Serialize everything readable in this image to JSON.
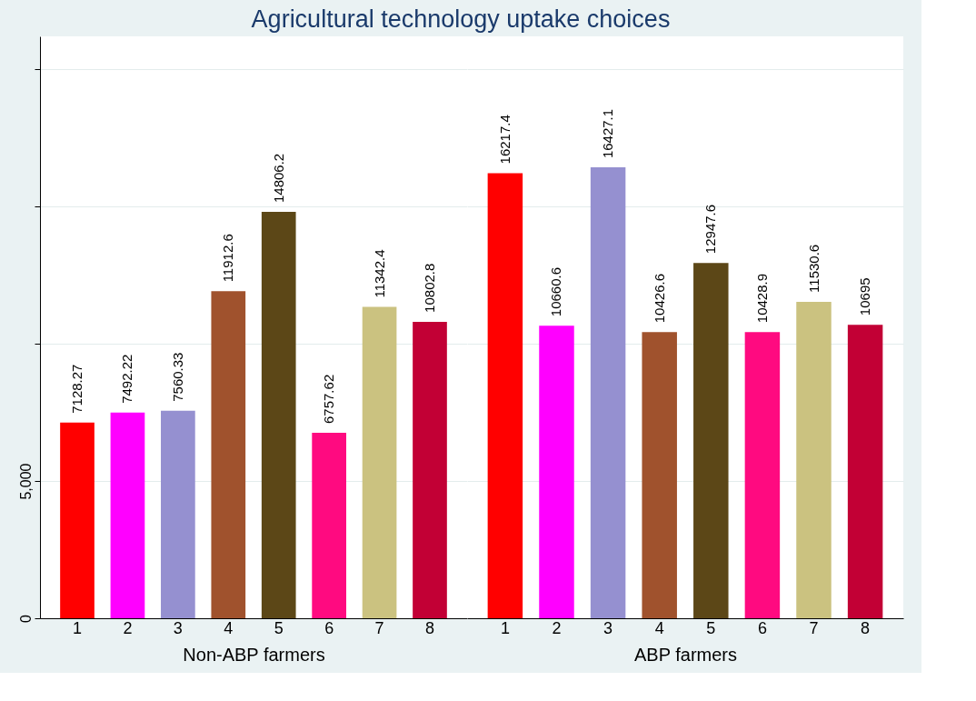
{
  "chart_data": [
    {
      "type": "bar",
      "title": "Agricultural technology uptake choices",
      "xlabel": "Non-ABP farmers",
      "categories": [
        "1",
        "2",
        "3",
        "4",
        "5",
        "6",
        "7",
        "8"
      ],
      "values": [
        7128.27,
        7492.22,
        7560.33,
        11912.6,
        14806.2,
        6757.62,
        11342.4,
        10802.8
      ],
      "colors": [
        "#ff0000",
        "#ff00ff",
        "#9590d0",
        "#a0522d",
        "#5c4717",
        "#ff0a80",
        "#cbc280",
        "#c20035"
      ],
      "ylim": [
        0,
        21200
      ],
      "yticks": [
        0,
        {
          "value": 5000,
          "label": "5,000"
        },
        {
          "value": 10000,
          "label": null
        },
        {
          "value": 15000,
          "label": null
        },
        {
          "value": 20000,
          "label": null
        }
      ],
      "grid": "y",
      "data_labels": true
    },
    {
      "type": "bar",
      "xlabel": "ABP farmers",
      "categories": [
        "1",
        "2",
        "3",
        "4",
        "5",
        "6",
        "7",
        "8"
      ],
      "values": [
        16217.4,
        10660.6,
        16427.1,
        10426.6,
        12947.6,
        10428.9,
        11530.6,
        10695
      ],
      "colors": [
        "#ff0000",
        "#ff00ff",
        "#9590d0",
        "#a0522d",
        "#5c4717",
        "#ff0a80",
        "#cbc280",
        "#c20035"
      ],
      "ylim": [
        0,
        21200
      ],
      "yticks": [
        0,
        5000,
        10000,
        15000,
        20000
      ],
      "grid": "y",
      "data_labels": true,
      "tick_labels": "x"
    }
  ]
}
